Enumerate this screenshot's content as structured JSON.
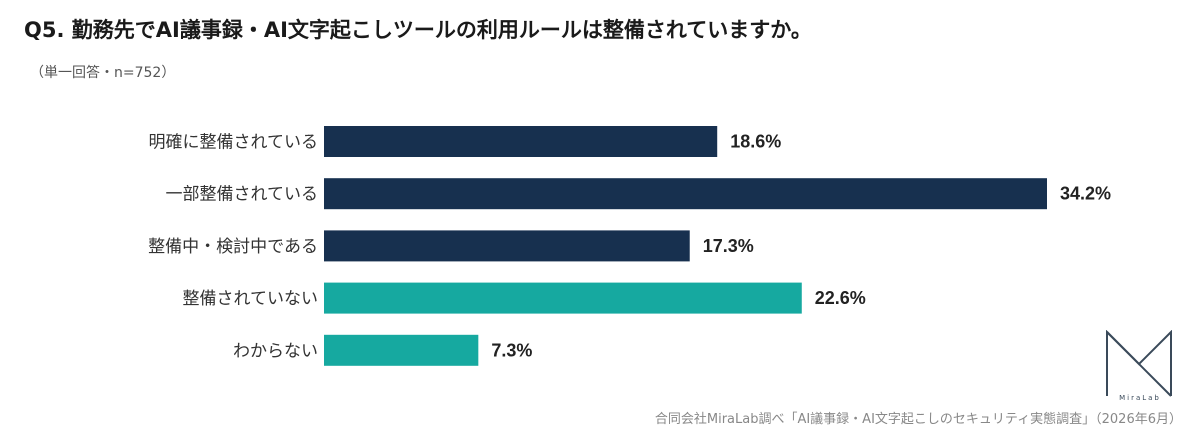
{
  "title": "Q5. 勤務先でAI議事録・AI文字起こしツールの利用ルールは整備されていますか。",
  "subtitle": "（単一回答・n=752）",
  "source": "合同会社MiraLab調べ「AI議事録・AI文字起こしのセキュリティ実態調査」（2026年6月）",
  "logo_text": "MiraLab",
  "colors": {
    "dark": "#17304f",
    "teal": "#16a9a0"
  },
  "chart_data": {
    "type": "bar",
    "orientation": "horizontal",
    "unit": "%",
    "categories": [
      "明確に整備されている",
      "一部整備されている",
      "整備中・検討中である",
      "整備されていない",
      "わからない"
    ],
    "values": [
      18.6,
      34.2,
      17.3,
      22.6,
      7.3
    ],
    "labels": [
      "18.6%",
      "34.2%",
      "17.3%",
      "22.6%",
      "7.3%"
    ],
    "bar_colors": [
      "#17304f",
      "#17304f",
      "#17304f",
      "#16a9a0",
      "#16a9a0"
    ],
    "xlim": [
      0,
      34.2
    ],
    "grid": false,
    "legend": "none"
  }
}
